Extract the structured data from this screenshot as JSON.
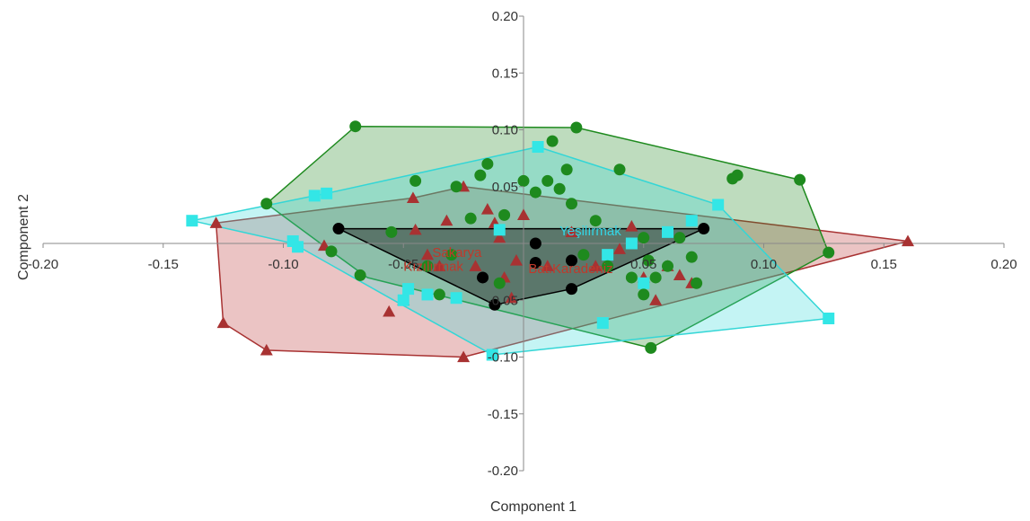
{
  "chart_data": {
    "type": "scatter",
    "xlabel": "Component 1",
    "ylabel": "Component 2",
    "xlim": [
      -0.2,
      0.2
    ],
    "ylim": [
      -0.2,
      0.2
    ],
    "x_ticks": [
      "-0.20",
      "-0.15",
      "-0.10",
      "-0.05",
      "0.05",
      "0.10",
      "0.15",
      "0.20"
    ],
    "y_ticks": [
      "0.20",
      "0.15",
      "0.10",
      "0.05",
      "-0.05",
      "-0.10",
      "-0.15",
      "-0.20"
    ],
    "x_tick_values": [
      -0.2,
      -0.15,
      -0.1,
      -0.05,
      0.05,
      0.1,
      0.15,
      0.2
    ],
    "y_tick_values": [
      0.2,
      0.15,
      0.1,
      0.05,
      -0.05,
      -0.1,
      -0.15,
      -0.2
    ],
    "group_labels": [
      {
        "text": "Yeşilırmak",
        "x": 0.015,
        "y": 0.007,
        "color": "#33d6e6"
      },
      {
        "text": "Sakarya",
        "x": -0.038,
        "y": -0.012,
        "color": "#c0392b"
      },
      {
        "text": "Kızılırmak",
        "x": -0.05,
        "y": -0.024,
        "color": "#c0392b"
      },
      {
        "text": "Bat.Karadeniz",
        "x": 0.002,
        "y": -0.026,
        "color": "#c0392b"
      }
    ],
    "series": [
      {
        "marker": "triangle",
        "color": "#a83232",
        "hull_fill": "rgba(190,60,60,0.30)",
        "hull_stroke": "#a83232",
        "hull": [
          [
            -0.128,
            0.018
          ],
          [
            -0.046,
            0.04
          ],
          [
            -0.025,
            0.05
          ],
          [
            0.16,
            0.002
          ],
          [
            -0.025,
            -0.1
          ],
          [
            -0.107,
            -0.094
          ],
          [
            -0.125,
            -0.07
          ]
        ],
        "points": [
          [
            -0.128,
            0.018
          ],
          [
            -0.125,
            -0.07
          ],
          [
            -0.107,
            -0.094
          ],
          [
            -0.083,
            -0.002
          ],
          [
            -0.056,
            -0.06
          ],
          [
            -0.05,
            -0.05
          ],
          [
            -0.046,
            0.04
          ],
          [
            -0.045,
            0.012
          ],
          [
            -0.04,
            -0.01
          ],
          [
            -0.035,
            -0.02
          ],
          [
            -0.032,
            0.02
          ],
          [
            -0.025,
            0.05
          ],
          [
            -0.02,
            -0.02
          ],
          [
            -0.015,
            0.03
          ],
          [
            -0.01,
            0.005
          ],
          [
            -0.008,
            -0.03
          ],
          [
            -0.005,
            -0.048
          ],
          [
            -0.003,
            -0.015
          ],
          [
            -0.012,
            0.018
          ],
          [
            -0.025,
            -0.1
          ],
          [
            0.0,
            0.025
          ],
          [
            0.01,
            -0.02
          ],
          [
            0.02,
            0.01
          ],
          [
            0.03,
            -0.02
          ],
          [
            0.04,
            -0.005
          ],
          [
            0.045,
            0.015
          ],
          [
            0.05,
            -0.03
          ],
          [
            0.06,
            -0.02
          ],
          [
            0.065,
            -0.028
          ],
          [
            0.07,
            -0.035
          ],
          [
            0.055,
            -0.05
          ],
          [
            0.16,
            0.002
          ]
        ]
      },
      {
        "marker": "circle",
        "color": "#1e8a1e",
        "hull_fill": "rgba(40,140,40,0.30)",
        "hull_stroke": "#1e8a1e",
        "hull": [
          [
            -0.107,
            0.035
          ],
          [
            -0.07,
            0.103
          ],
          [
            0.022,
            0.102
          ],
          [
            0.115,
            0.056
          ],
          [
            0.127,
            -0.008
          ],
          [
            0.053,
            -0.092
          ],
          [
            -0.065,
            -0.03
          ],
          [
            -0.08,
            -0.007
          ]
        ],
        "points": [
          [
            -0.07,
            0.103
          ],
          [
            -0.107,
            0.035
          ],
          [
            -0.08,
            -0.007
          ],
          [
            -0.068,
            -0.028
          ],
          [
            -0.055,
            0.01
          ],
          [
            -0.045,
            0.055
          ],
          [
            -0.04,
            -0.02
          ],
          [
            -0.035,
            -0.045
          ],
          [
            -0.03,
            -0.01
          ],
          [
            -0.028,
            0.05
          ],
          [
            -0.022,
            0.022
          ],
          [
            -0.018,
            0.06
          ],
          [
            -0.015,
            0.07
          ],
          [
            -0.01,
            -0.035
          ],
          [
            -0.008,
            0.025
          ],
          [
            0.0,
            0.055
          ],
          [
            0.005,
            0.045
          ],
          [
            0.01,
            0.055
          ],
          [
            0.012,
            0.09
          ],
          [
            0.015,
            0.048
          ],
          [
            0.018,
            0.065
          ],
          [
            0.02,
            0.035
          ],
          [
            0.022,
            0.102
          ],
          [
            0.025,
            -0.01
          ],
          [
            0.03,
            0.02
          ],
          [
            0.035,
            -0.02
          ],
          [
            0.04,
            0.065
          ],
          [
            0.045,
            -0.03
          ],
          [
            0.05,
            -0.045
          ],
          [
            0.05,
            0.005
          ],
          [
            0.052,
            -0.015
          ],
          [
            0.053,
            -0.092
          ],
          [
            0.055,
            -0.03
          ],
          [
            0.06,
            -0.02
          ],
          [
            0.065,
            0.005
          ],
          [
            0.07,
            -0.012
          ],
          [
            0.072,
            -0.035
          ],
          [
            0.087,
            0.057
          ],
          [
            0.089,
            0.06
          ],
          [
            0.115,
            0.056
          ],
          [
            0.127,
            -0.008
          ]
        ]
      },
      {
        "marker": "square",
        "color": "#33e6e6",
        "hull_fill": "rgba(60,220,220,0.30)",
        "hull_stroke": "#33d6d6",
        "hull": [
          [
            -0.138,
            0.02
          ],
          [
            -0.087,
            0.042
          ],
          [
            -0.082,
            0.044
          ],
          [
            0.006,
            0.085
          ],
          [
            0.081,
            0.034
          ],
          [
            0.127,
            -0.066
          ],
          [
            -0.013,
            -0.098
          ],
          [
            -0.054,
            -0.05
          ],
          [
            -0.096,
            0.0
          ]
        ],
        "points": [
          [
            -0.138,
            0.02
          ],
          [
            -0.096,
            0.002
          ],
          [
            -0.094,
            -0.003
          ],
          [
            -0.087,
            0.042
          ],
          [
            -0.082,
            0.044
          ],
          [
            -0.05,
            -0.05
          ],
          [
            -0.048,
            -0.04
          ],
          [
            -0.04,
            -0.045
          ],
          [
            -0.028,
            -0.048
          ],
          [
            -0.01,
            0.012
          ],
          [
            -0.013,
            -0.098
          ],
          [
            0.006,
            0.085
          ],
          [
            0.035,
            -0.01
          ],
          [
            0.033,
            -0.07
          ],
          [
            0.045,
            0.0
          ],
          [
            0.05,
            -0.035
          ],
          [
            0.06,
            0.01
          ],
          [
            0.07,
            0.02
          ],
          [
            0.081,
            0.034
          ],
          [
            0.127,
            -0.066
          ]
        ]
      },
      {
        "marker": "circle",
        "color": "#000000",
        "hull_fill": "rgba(30,30,30,0.45)",
        "hull_stroke": "#000000",
        "hull": [
          [
            -0.077,
            0.013
          ],
          [
            0.075,
            0.013
          ],
          [
            0.02,
            -0.04
          ],
          [
            -0.012,
            -0.054
          ]
        ],
        "points": [
          [
            -0.077,
            0.013
          ],
          [
            -0.012,
            -0.054
          ],
          [
            -0.017,
            -0.03
          ],
          [
            0.005,
            0.0
          ],
          [
            0.005,
            -0.017
          ],
          [
            0.02,
            -0.04
          ],
          [
            0.02,
            -0.015
          ],
          [
            0.075,
            0.013
          ]
        ]
      }
    ]
  }
}
